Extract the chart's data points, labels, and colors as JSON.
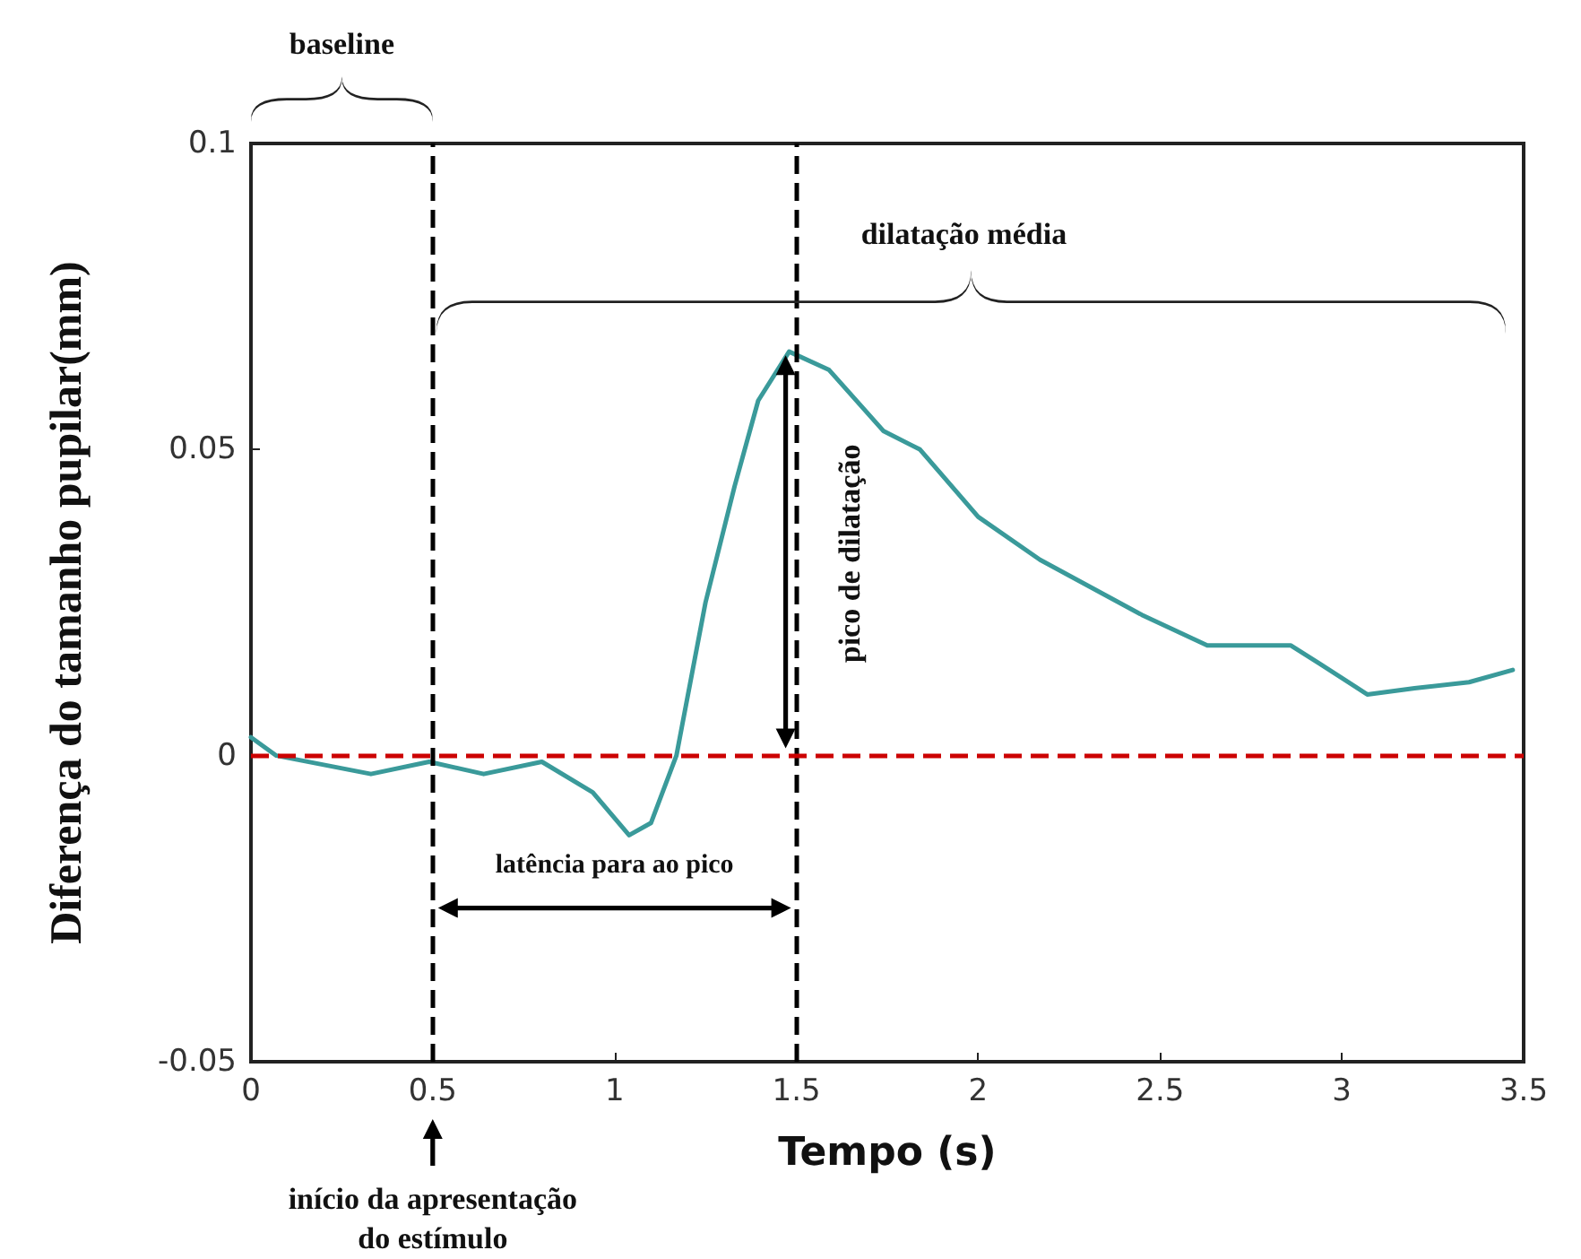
{
  "chart_data": {
    "type": "line",
    "xlabel": "Tempo (s)",
    "ylabel": "Diferença do tamanho pupilar(mm)",
    "x": [
      0,
      0.07,
      0.33,
      0.49,
      0.64,
      0.8,
      0.94,
      1.04,
      1.1,
      1.17,
      1.25,
      1.33,
      1.395,
      1.48,
      1.59,
      1.74,
      1.84,
      2.0,
      2.17,
      2.45,
      2.63,
      2.86,
      2.94,
      3.07,
      3.2,
      3.35,
      3.47
    ],
    "series": [
      {
        "color": "#3a9a9a",
        "values": [
          0.003,
          0,
          -0.003,
          -0.001,
          -0.003,
          -0.001,
          -0.006,
          -0.013,
          -0.011,
          0,
          0.025,
          0.044,
          0.058,
          0.066,
          0.063,
          0.053,
          0.05,
          0.039,
          0.032,
          0.023,
          0.018,
          0.018,
          0.015,
          0.01,
          0.011,
          0.012,
          0.014
        ]
      }
    ],
    "xlim": [
      0,
      3.5
    ],
    "xticks": [
      0,
      0.5,
      1,
      1.5,
      2,
      2.5,
      3,
      3.5
    ],
    "ylim": [
      -0.05,
      0.1
    ],
    "yticks": [
      -0.05,
      0,
      0.05,
      0.1
    ],
    "ref_lines": [
      {
        "axis": "x",
        "value": 0.5,
        "color": "#000000",
        "line_style": "dashed"
      },
      {
        "axis": "x",
        "value": 1.5,
        "color": "#000000",
        "line_style": "dashed"
      },
      {
        "axis": "y",
        "value": 0,
        "color": "#cc0000",
        "line_style": "dashed"
      }
    ],
    "annotations": [
      "baseline",
      "início da apresentação do estímulo",
      "dilatação média",
      {
        "text": "pico de dilatação",
        "x": 1.5,
        "y": 0.033
      },
      "latência para ao pico"
    ],
    "grid": false,
    "marker": "none",
    "line_style": "solid"
  }
}
